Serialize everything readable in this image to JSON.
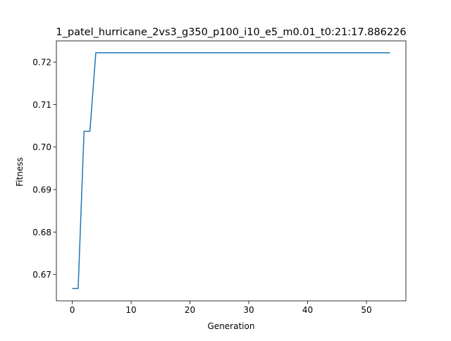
{
  "chart_data": {
    "type": "line",
    "title": "1_patel_hurricane_2vs3_g350_p100_i10_e5_m0.01_t0:21:17.886226",
    "xlabel": "Generation",
    "ylabel": "Fitness",
    "xlim": [
      -2.7,
      56.7
    ],
    "ylim": [
      0.6638,
      0.725
    ],
    "x_ticks": [
      0,
      10,
      20,
      30,
      40,
      50
    ],
    "x_tick_labels": [
      "0",
      "10",
      "20",
      "30",
      "40",
      "50"
    ],
    "y_ticks": [
      0.67,
      0.68,
      0.69,
      0.7,
      0.71,
      0.72
    ],
    "y_tick_labels": [
      "0.67",
      "0.68",
      "0.69",
      "0.70",
      "0.71",
      "0.72"
    ],
    "grid": false,
    "series": [
      {
        "color": "#1f77b4",
        "x": [
          0,
          1,
          2,
          3,
          4,
          5,
          54
        ],
        "y": [
          0.6667,
          0.6667,
          0.7037,
          0.7037,
          0.7222,
          0.7222,
          0.7222
        ]
      }
    ]
  }
}
